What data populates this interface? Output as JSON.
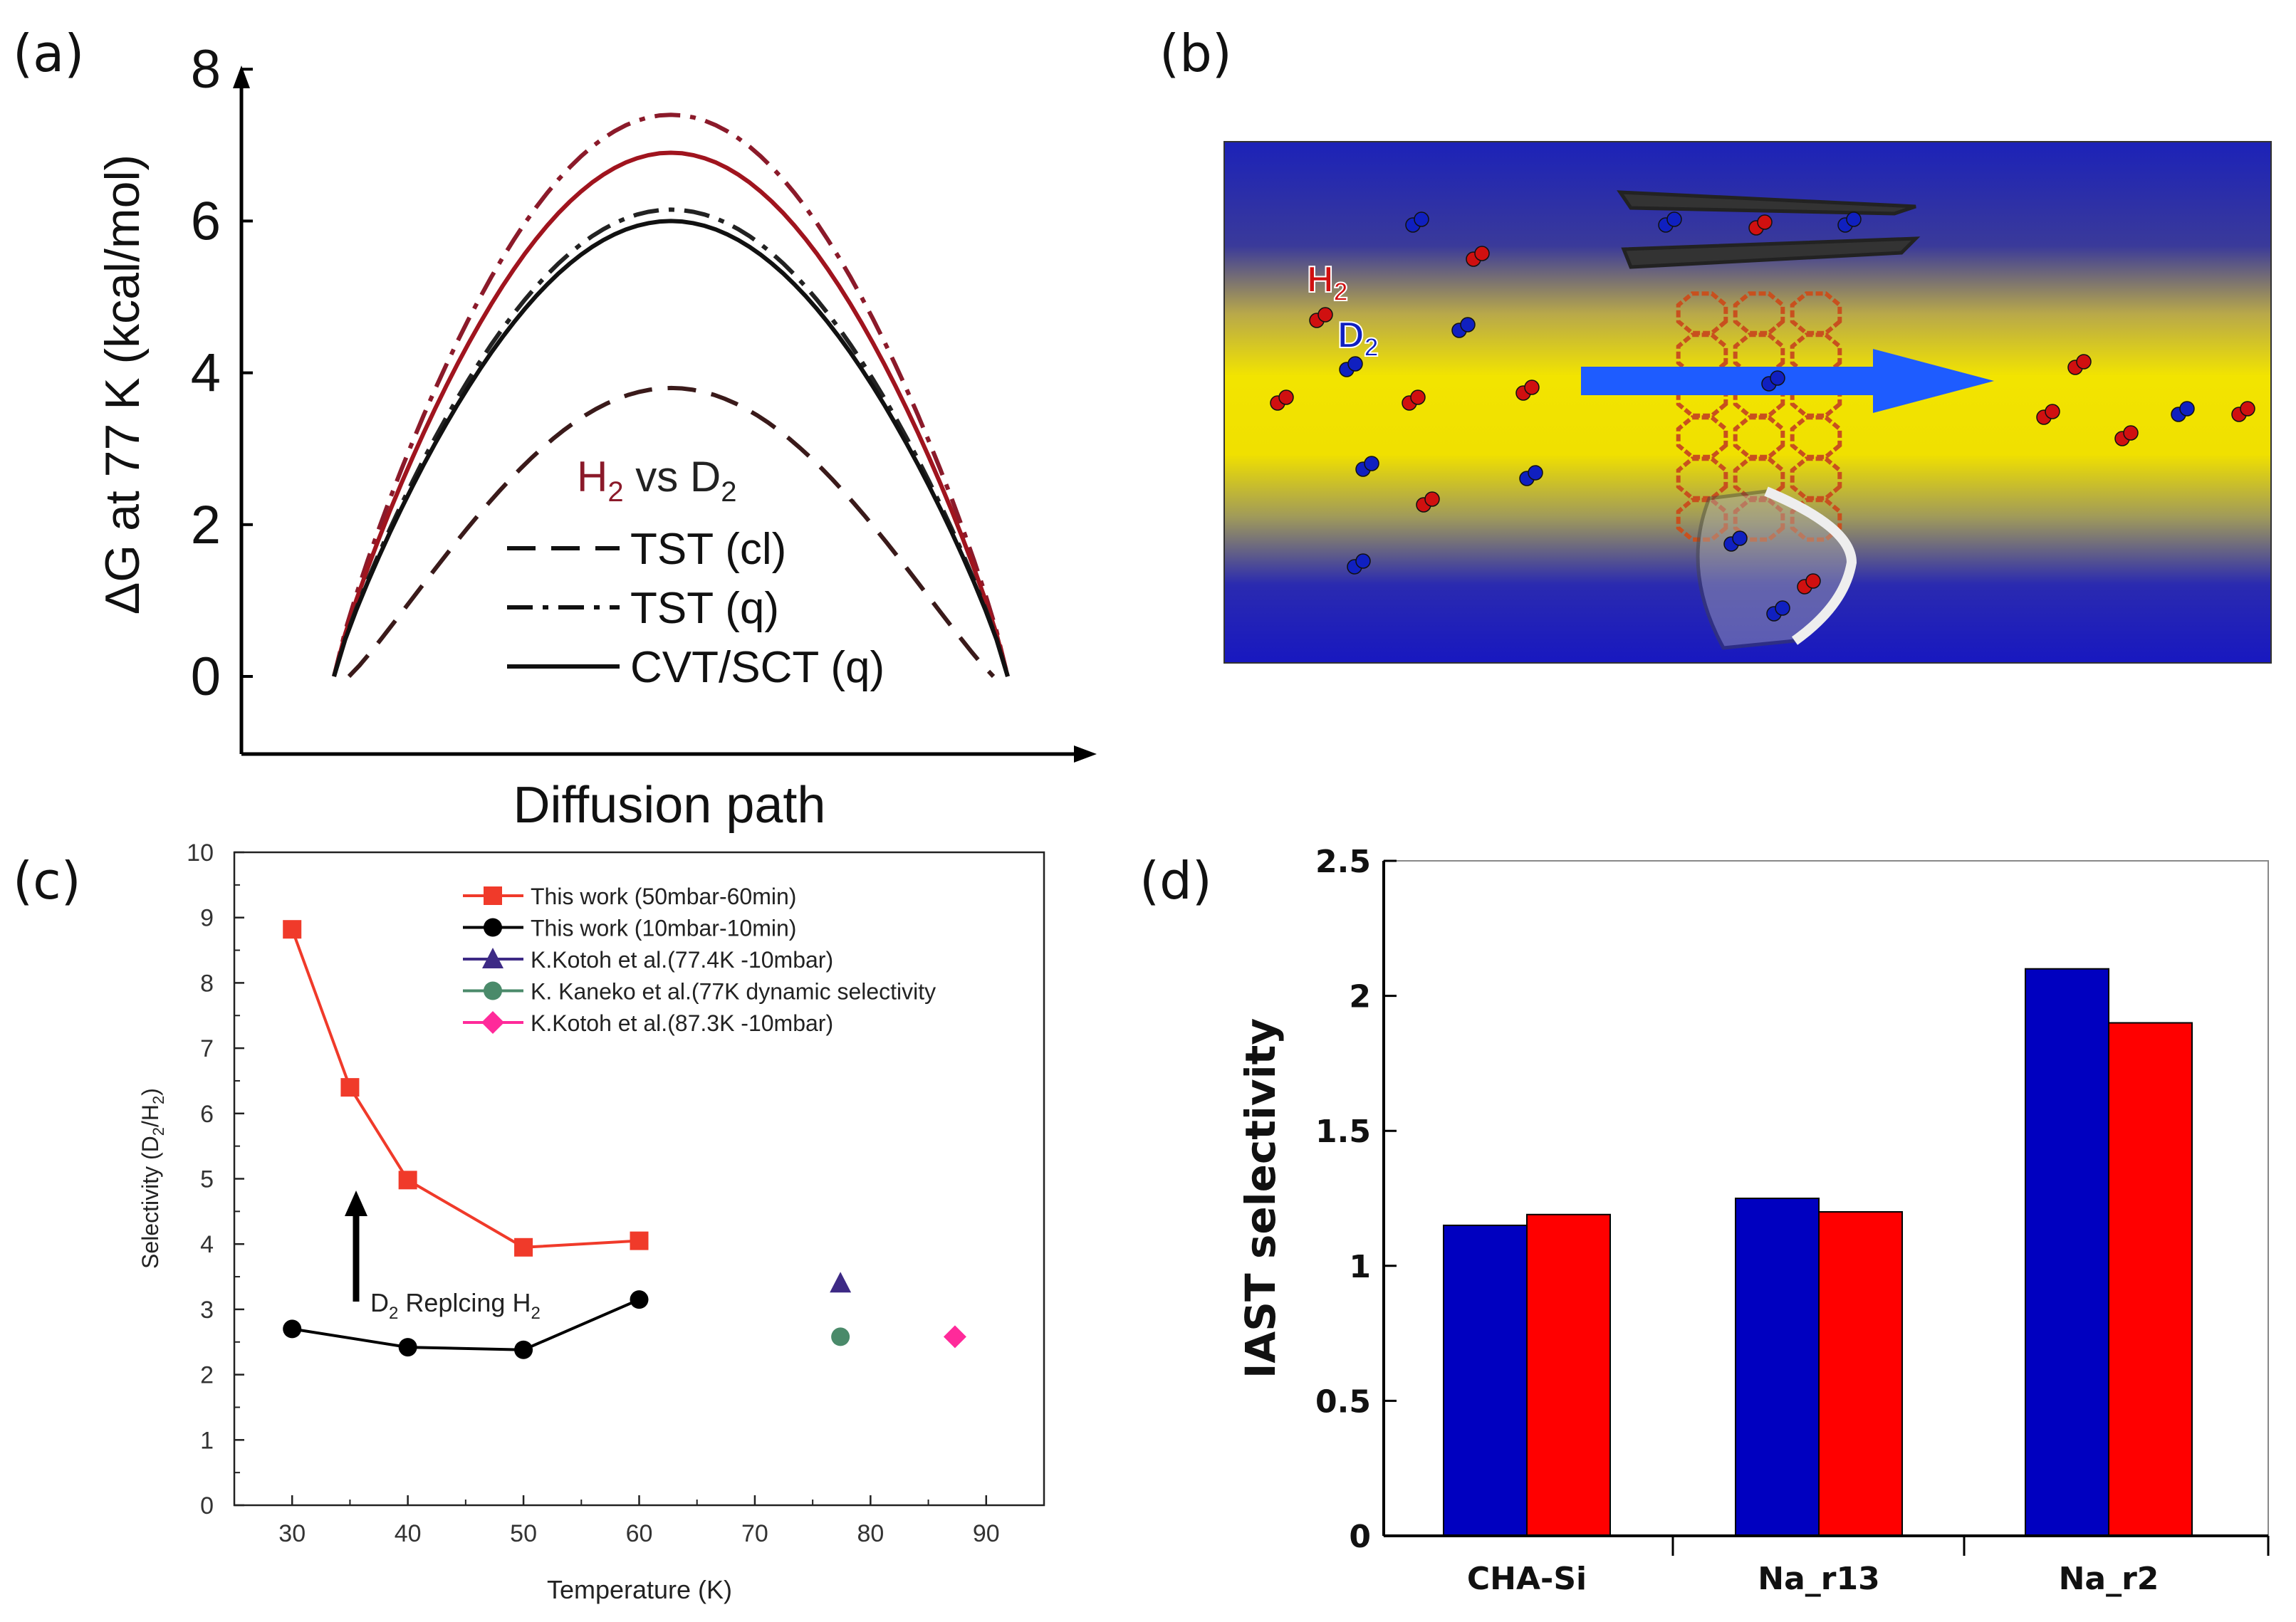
{
  "panel_labels": {
    "a": "(a)",
    "b": "(b)",
    "c": "(c)",
    "d": "(d)"
  },
  "panel_b": {
    "h2_label": "H",
    "d2_label": "D",
    "subscript": "2",
    "colors": {
      "blue": "#1c22b8",
      "yellow": "#f2e400",
      "h2": "#d01010",
      "d2": "#1020c0",
      "arrow": "#1e5cff"
    }
  },
  "chart_data": [
    {
      "id": "a",
      "type": "line",
      "title": "",
      "xlabel": "Diffusion path",
      "ylabel": "ΔG at 77 K (kcal/mol)",
      "ylim": [
        0,
        8
      ],
      "yticks": [
        "0",
        "2",
        "4",
        "6",
        "8"
      ],
      "legend_title": {
        "main": "H",
        "sub1": "2",
        "mid": " vs D",
        "sub2": "2"
      },
      "legend": [
        {
          "label": "TST (cl)",
          "style": "dashed"
        },
        {
          "label": "TST (q)",
          "style": "dash-dot"
        },
        {
          "label": "CVT/SCT (q)",
          "style": "solid"
        }
      ],
      "series": [
        {
          "name": "H2 TST (q)",
          "color": "#8b1a2a",
          "style": "dash-dot",
          "peak": 7.4
        },
        {
          "name": "H2 CVT/SCT (q)",
          "color": "#a0141e",
          "style": "solid",
          "peak": 6.9
        },
        {
          "name": "D2 TST (q)",
          "color": "#222222",
          "style": "dash-dot",
          "peak": 6.15
        },
        {
          "name": "D2 CVT/SCT (q)",
          "color": "#111111",
          "style": "solid",
          "peak": 6.0
        },
        {
          "name": "TST (cl)",
          "color": "#3a1a1a",
          "style": "dashed",
          "peak": 3.8
        }
      ]
    },
    {
      "id": "c",
      "type": "scatter",
      "xlabel": "Temperature (K)",
      "ylabel": {
        "main": "Selectivity  (D",
        "sub1": "2",
        "mid": "/H",
        "sub2": "2",
        "end": ")"
      },
      "xlim": [
        25,
        95
      ],
      "ylim": [
        0,
        10
      ],
      "xticks": [
        30,
        40,
        50,
        60,
        70,
        80,
        90
      ],
      "yticks": [
        0,
        1,
        2,
        3,
        4,
        5,
        6,
        7,
        8,
        9,
        10
      ],
      "annotation": {
        "main": "D",
        "sub1": "2",
        "mid": " Replcing H",
        "sub2": "2"
      },
      "series": [
        {
          "name": "This work (50mbar-60min)",
          "color": "#f03a2a",
          "marker": "square",
          "line": true,
          "x": [
            30,
            35,
            40,
            50,
            60
          ],
          "y": [
            8.82,
            6.4,
            4.98,
            3.95,
            4.05
          ]
        },
        {
          "name": "This work (10mbar-10min)",
          "color": "#000000",
          "marker": "circle",
          "line": true,
          "x": [
            30,
            40,
            50,
            60
          ],
          "y": [
            2.7,
            2.42,
            2.38,
            3.15
          ]
        },
        {
          "name": "K.Kotoh et al.(77.4K -10mbar)",
          "color": "#3d2a85",
          "marker": "triangle",
          "line": false,
          "x": [
            77.4
          ],
          "y": [
            3.4
          ]
        },
        {
          "name": "K. Kaneko et al.(77K dynamic selectivity",
          "color": "#4a8a6a",
          "marker": "circle",
          "line": false,
          "x": [
            77.4
          ],
          "y": [
            2.58
          ]
        },
        {
          "name": "K.Kotoh et al.(87.3K -10mbar)",
          "color": "#ff2a9a",
          "marker": "diamond",
          "line": false,
          "x": [
            87.3
          ],
          "y": [
            2.58
          ]
        }
      ]
    },
    {
      "id": "d",
      "type": "bar",
      "ylabel": "IAST selectivity",
      "ylim": [
        0,
        2.5
      ],
      "yticks": [
        "0",
        "0.5",
        "1",
        "1.5",
        "2",
        "2.5"
      ],
      "categories": [
        "CHA-Si",
        "Na_r13",
        "Na_r2"
      ],
      "series": [
        {
          "name": "blue",
          "color": "#0000c0",
          "values": [
            1.15,
            1.25,
            2.1
          ]
        },
        {
          "name": "red",
          "color": "#ff0000",
          "values": [
            1.19,
            1.2,
            1.9
          ]
        }
      ]
    }
  ]
}
